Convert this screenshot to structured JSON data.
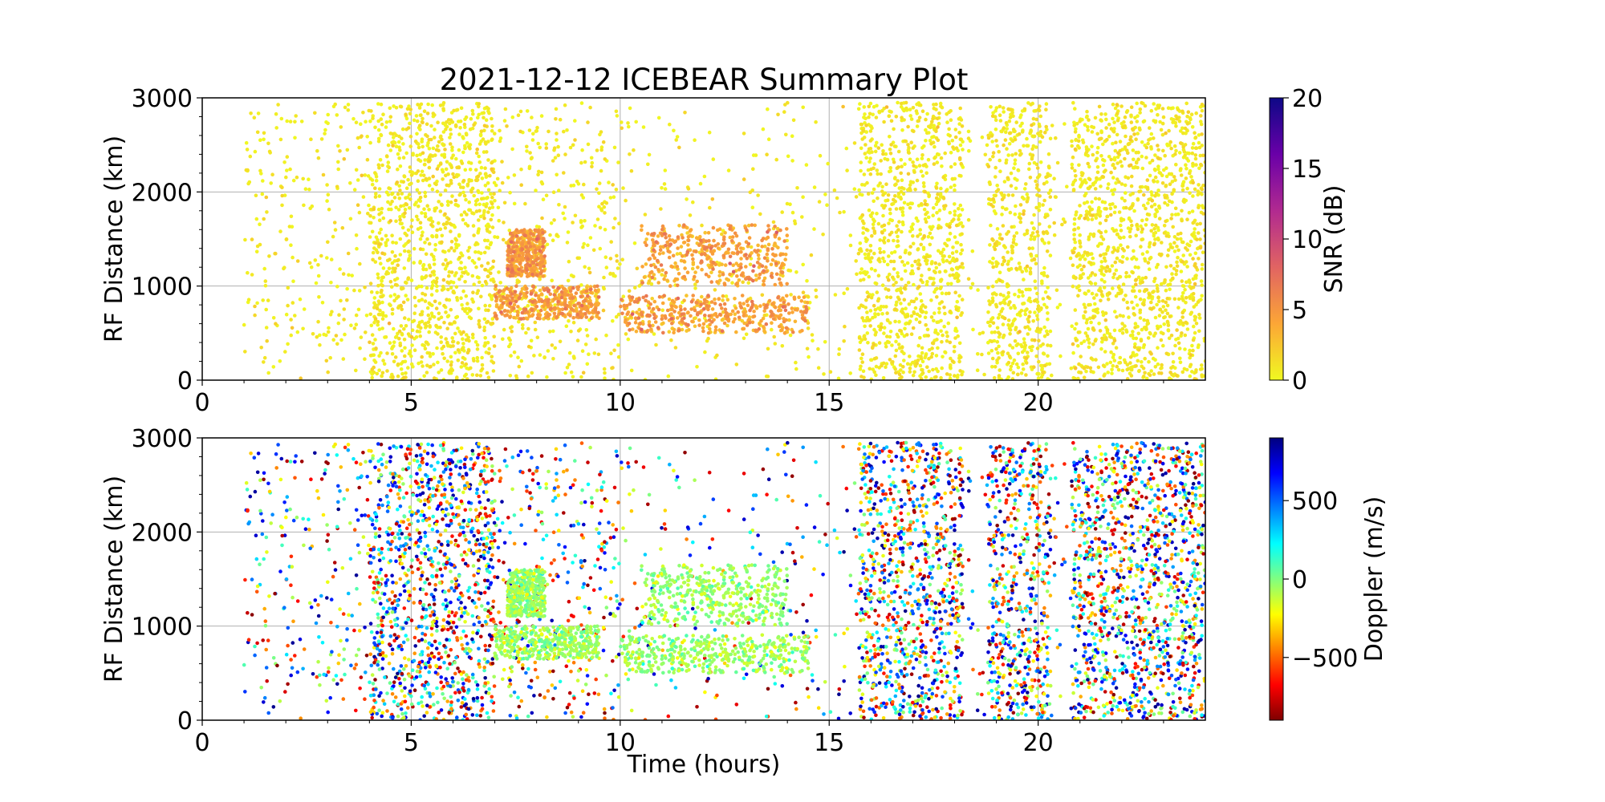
{
  "figure": {
    "title": "2021-12-12 ICEBEAR Summary Plot",
    "xlabel": "Time (hours)"
  },
  "chart_data": [
    {
      "type": "scatter",
      "panel": "top",
      "title": "2021-12-12 ICEBEAR Summary Plot",
      "xlabel": "",
      "ylabel": "RF Distance (km)",
      "xlim": [
        0,
        24
      ],
      "ylim": [
        0,
        3000
      ],
      "xticks": [
        "0",
        "5",
        "10",
        "15",
        "20"
      ],
      "yticks": [
        "0",
        "1000",
        "2000",
        "3000"
      ],
      "grid": true,
      "colorbar": {
        "label": "SNR (dB)",
        "range": [
          0,
          20
        ],
        "ticks": [
          "0",
          "5",
          "10",
          "15",
          "20"
        ],
        "colormap": "plasma_r",
        "stops": [
          "#f0f921",
          "#fca636",
          "#e16462",
          "#b12a90",
          "#6a00a8",
          "#0d0887"
        ]
      },
      "data_summary": {
        "time_range_hours": [
          1.0,
          24.0
        ],
        "range_km": [
          0,
          2950
        ],
        "dense_intervals_hours": [
          [
            4.0,
            7.0
          ],
          [
            15.7,
            18.2
          ],
          [
            18.8,
            20.3
          ],
          [
            20.8,
            24.0
          ]
        ],
        "enhanced_snr_features": [
          {
            "time_hours": [
              7.0,
              9.5
            ],
            "range_km": [
              650,
              1000
            ],
            "snr_db": 4
          },
          {
            "time_hours": [
              7.3,
              8.2
            ],
            "range_km": [
              1100,
              1600
            ],
            "snr_db": 4
          },
          {
            "time_hours": [
              10.0,
              14.5
            ],
            "range_km": [
              500,
              900
            ],
            "snr_db": 4
          },
          {
            "time_hours": [
              10.5,
              14.0
            ],
            "range_km": [
              1000,
              1650
            ],
            "snr_db": 4
          }
        ]
      }
    },
    {
      "type": "scatter",
      "panel": "bottom",
      "xlabel": "Time (hours)",
      "ylabel": "RF Distance (km)",
      "xlim": [
        0,
        24
      ],
      "ylim": [
        0,
        3000
      ],
      "xticks": [
        "0",
        "5",
        "10",
        "15",
        "20"
      ],
      "yticks": [
        "0",
        "1000",
        "2000",
        "3000"
      ],
      "grid": true,
      "colorbar": {
        "label": "Doppler (m/s)",
        "range": [
          -900,
          900
        ],
        "ticks": [
          "−500",
          "0",
          "500"
        ],
        "tick_values": [
          -500,
          0,
          500
        ],
        "colormap": "jet_r",
        "stops": [
          "#7f0000",
          "#ff0000",
          "#ff8000",
          "#ffff00",
          "#80ff80",
          "#00ffff",
          "#0080ff",
          "#0000ff",
          "#00007f"
        ]
      },
      "data_summary": {
        "time_range_hours": [
          1.0,
          24.0
        ],
        "range_km": [
          0,
          2950
        ],
        "dense_intervals_hours": [
          [
            4.0,
            7.0
          ],
          [
            15.7,
            18.2
          ],
          [
            18.8,
            20.3
          ],
          [
            20.8,
            24.0
          ]
        ],
        "low_doppler_features": [
          {
            "time_hours": [
              7.0,
              9.5
            ],
            "range_km": [
              650,
              1000
            ],
            "doppler_ms": -50
          },
          {
            "time_hours": [
              7.3,
              8.2
            ],
            "range_km": [
              1100,
              1600
            ],
            "doppler_ms": -50
          },
          {
            "time_hours": [
              10.0,
              14.5
            ],
            "range_km": [
              500,
              900
            ],
            "doppler_ms": -50
          },
          {
            "time_hours": [
              10.5,
              14.0
            ],
            "range_km": [
              1000,
              1650
            ],
            "doppler_ms": -50
          }
        ]
      }
    }
  ]
}
